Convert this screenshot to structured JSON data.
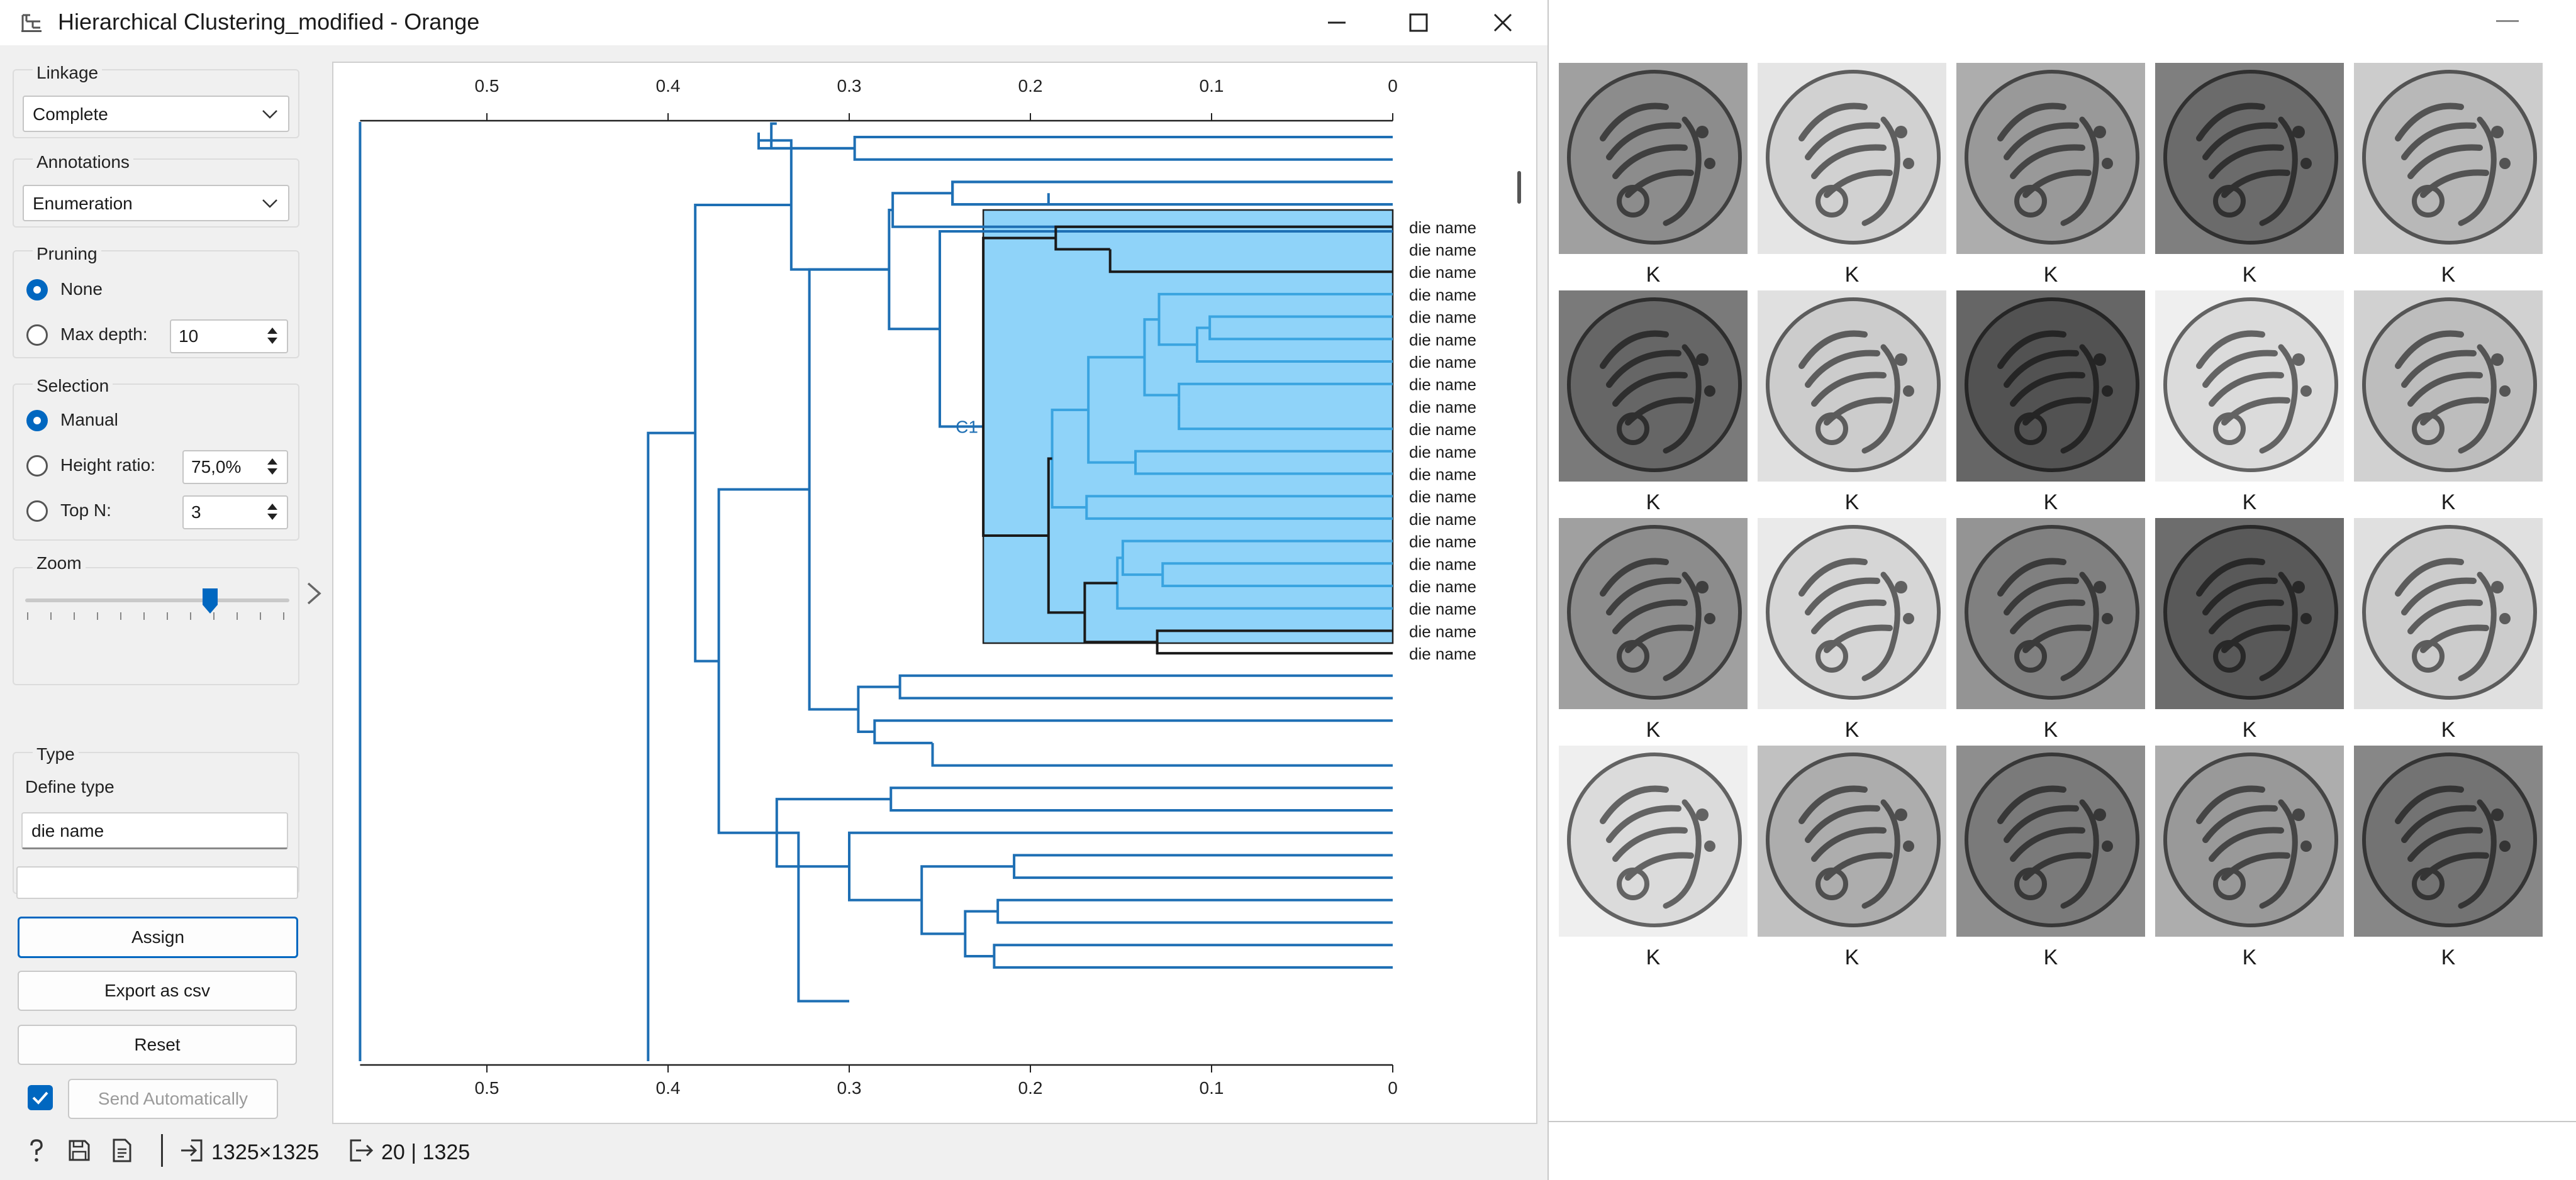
{
  "window": {
    "title": "Hierarchical Clustering_modified - Orange",
    "right_title": ""
  },
  "colors": {
    "accent": "#0067c0",
    "tree_line": "#1e6fb4",
    "selection_fill": "#8fd3f9",
    "selection_fill_inner": "#9dd9fa"
  },
  "controls": {
    "linkage": {
      "label": "Linkage",
      "value": "Complete"
    },
    "annotations": {
      "label": "Annotations",
      "value": "Enumeration"
    },
    "pruning": {
      "label": "Pruning",
      "none_label": "None",
      "none_checked": true,
      "max_depth_label": "Max depth:",
      "max_depth_value": "10"
    },
    "selection": {
      "label": "Selection",
      "manual_label": "Manual",
      "manual_checked": true,
      "height_ratio_label": "Height ratio:",
      "height_ratio_value": "75,0%",
      "top_n_label": "Top N:",
      "top_n_value": "3"
    },
    "zoom": {
      "label": "Zoom",
      "value": 0.7
    },
    "type": {
      "label": "Type",
      "define_type_label": "Define type",
      "define_type_value": "die name",
      "extra_value": ""
    },
    "buttons": {
      "assign": "Assign",
      "export": "Export as csv",
      "reset": "Reset",
      "send_auto": "Send Automatically",
      "send_auto_checked": true
    }
  },
  "status": {
    "input_count": "1325×1325",
    "output_count": "20 | 1325"
  },
  "dendrogram": {
    "axis_ticks": [
      "0.5",
      "0.4",
      "0.3",
      "0.2",
      "0.1",
      "0"
    ],
    "axis_tick_values": [
      0.5,
      0.4,
      0.3,
      0.2,
      0.1,
      0
    ],
    "cluster_label": "C1",
    "leaf_labels": [
      "die name",
      "die name",
      "die name",
      "die name",
      "die name",
      "die name",
      "die name",
      "die name",
      "die name",
      "die name",
      "die name",
      "die name",
      "die name",
      "die name",
      "die name",
      "die name",
      "die name",
      "die name",
      "die name",
      "die name"
    ]
  },
  "gallery": {
    "labels": [
      "K",
      "K",
      "K",
      "K",
      "K",
      "K",
      "K",
      "K",
      "K",
      "K",
      "K",
      "K",
      "K",
      "K",
      "K",
      "K",
      "K",
      "K",
      "K",
      "K"
    ],
    "image_tones": [
      0.55,
      0.82,
      0.6,
      0.42,
      0.72,
      0.4,
      0.8,
      0.32,
      0.86,
      0.74,
      0.55,
      0.84,
      0.5,
      0.35,
      0.8,
      0.86,
      0.68,
      0.48,
      0.6,
      0.45
    ]
  }
}
